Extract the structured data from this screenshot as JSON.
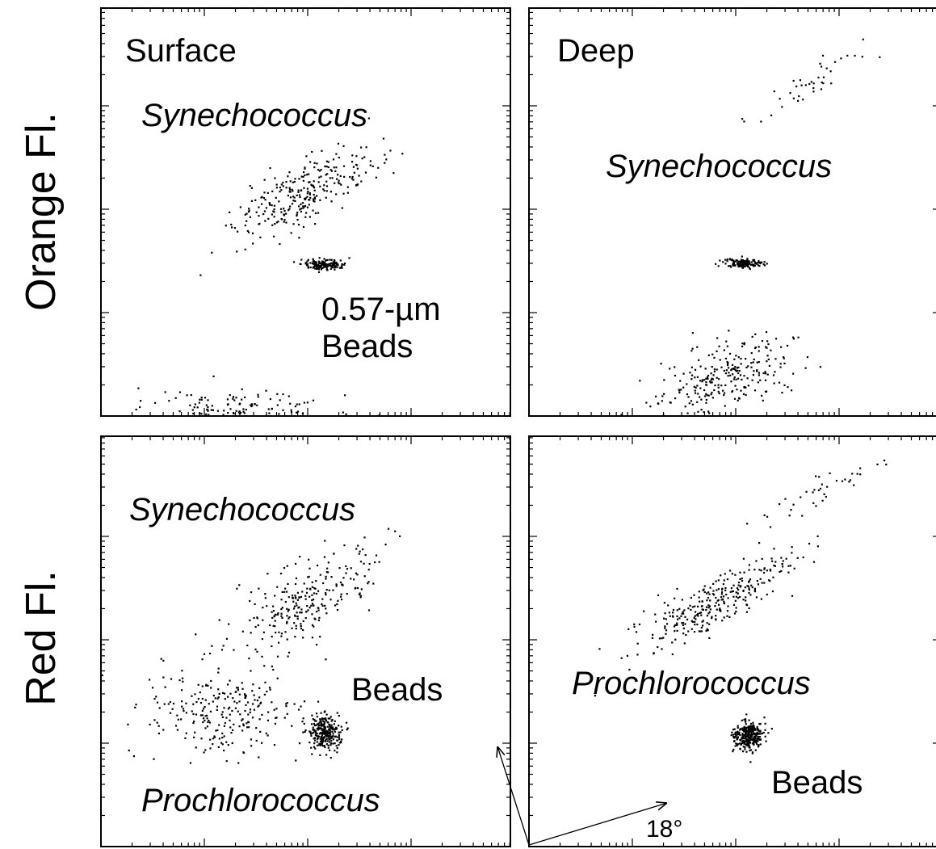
{
  "axis_labels": [
    "Orange Fl.",
    "Red Fl."
  ],
  "panels": [
    {
      "label": "Surface",
      "annotations": [
        "Synechococcus",
        "0.57-µm",
        "Beads"
      ]
    },
    {
      "label": "Deep",
      "annotations": [
        "Synechococcus"
      ]
    },
    {
      "annotations": [
        "Synechococcus",
        "Beads",
        "Prochlorococcus"
      ]
    },
    {
      "annotations": [
        "Prochlorococcus",
        "Beads",
        "18°"
      ]
    }
  ]
}
